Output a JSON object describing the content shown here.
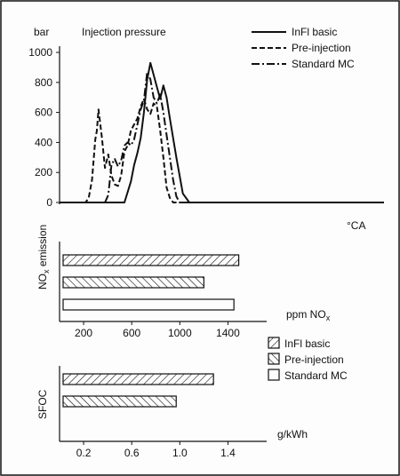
{
  "colors": {
    "ink": "#111111",
    "paper": "#fdfdfd"
  },
  "chart_data": [
    {
      "type": "line",
      "title": "Injection pressure",
      "xlabel": "°CA",
      "ylabel": "bar",
      "ylim": [
        0,
        1000
      ],
      "yticks": [
        0,
        200,
        400,
        600,
        800,
        1000
      ],
      "xlim": [
        0,
        100
      ],
      "grid": false,
      "legend_position": "top-right",
      "series": [
        {
          "name": "InFl basic",
          "dash": "solid",
          "x": [
            0,
            18,
            20,
            22,
            23,
            24,
            25,
            26,
            27,
            28,
            30,
            31,
            32,
            33,
            34,
            36,
            38,
            40,
            100
          ],
          "y": [
            0,
            0,
            0,
            140,
            250,
            330,
            430,
            600,
            820,
            930,
            770,
            690,
            780,
            700,
            560,
            300,
            60,
            0,
            0
          ]
        },
        {
          "name": "Pre-injection",
          "dash": "dashed",
          "x": [
            0,
            8,
            9,
            10,
            11,
            11.5,
            12,
            13,
            14,
            15,
            16,
            17,
            18,
            19,
            20,
            21,
            22,
            23,
            24,
            25,
            26,
            27,
            28,
            29,
            30,
            31,
            32,
            33,
            34,
            35,
            100
          ],
          "y": [
            0,
            0,
            30,
            150,
            420,
            480,
            620,
            440,
            230,
            320,
            180,
            120,
            110,
            180,
            340,
            380,
            480,
            520,
            560,
            640,
            690,
            620,
            590,
            660,
            640,
            480,
            300,
            100,
            30,
            0,
            0
          ]
        },
        {
          "name": "Standard MC",
          "dash": "dashdot",
          "x": [
            0,
            14,
            15,
            16,
            17,
            18,
            19,
            20,
            21,
            22,
            23,
            24,
            25,
            26,
            27,
            28,
            29,
            30,
            31,
            32,
            33,
            34,
            35,
            36,
            37,
            100
          ],
          "y": [
            0,
            0,
            50,
            250,
            290,
            240,
            280,
            380,
            400,
            380,
            420,
            520,
            620,
            680,
            870,
            820,
            700,
            660,
            720,
            600,
            450,
            300,
            150,
            40,
            0,
            0
          ]
        }
      ]
    },
    {
      "type": "bar",
      "orientation": "horizontal",
      "ylabel": "NOx emission",
      "xlabel": "ppm NOx",
      "xticks": [
        200,
        600,
        1000,
        1400
      ],
      "xlim": [
        0,
        1700
      ],
      "series": [
        {
          "name": "InFl basic",
          "pattern": "hatch-right",
          "value": 1490
        },
        {
          "name": "Pre-injection",
          "pattern": "hatch-left",
          "value": 1200
        },
        {
          "name": "Standard MC",
          "pattern": "blank",
          "value": 1450
        }
      ]
    },
    {
      "type": "bar",
      "orientation": "horizontal",
      "ylabel": "SFOC",
      "xlabel": "g/kWh",
      "xticks": [
        0.2,
        0.6,
        1.0,
        1.4
      ],
      "xlim": [
        0,
        1.7
      ],
      "legend_position": "right",
      "legend": [
        {
          "name": "InFl basic",
          "pattern": "hatch-right"
        },
        {
          "name": "Pre-injection",
          "pattern": "hatch-left"
        },
        {
          "name": "Standard MC",
          "pattern": "blank"
        }
      ],
      "series": [
        {
          "name": "InFl basic",
          "pattern": "hatch-right",
          "value": 1.28
        },
        {
          "name": "Pre-injection",
          "pattern": "hatch-left",
          "value": 0.97
        },
        {
          "name": "Standard MC",
          "pattern": "blank",
          "value": 0
        }
      ]
    }
  ]
}
